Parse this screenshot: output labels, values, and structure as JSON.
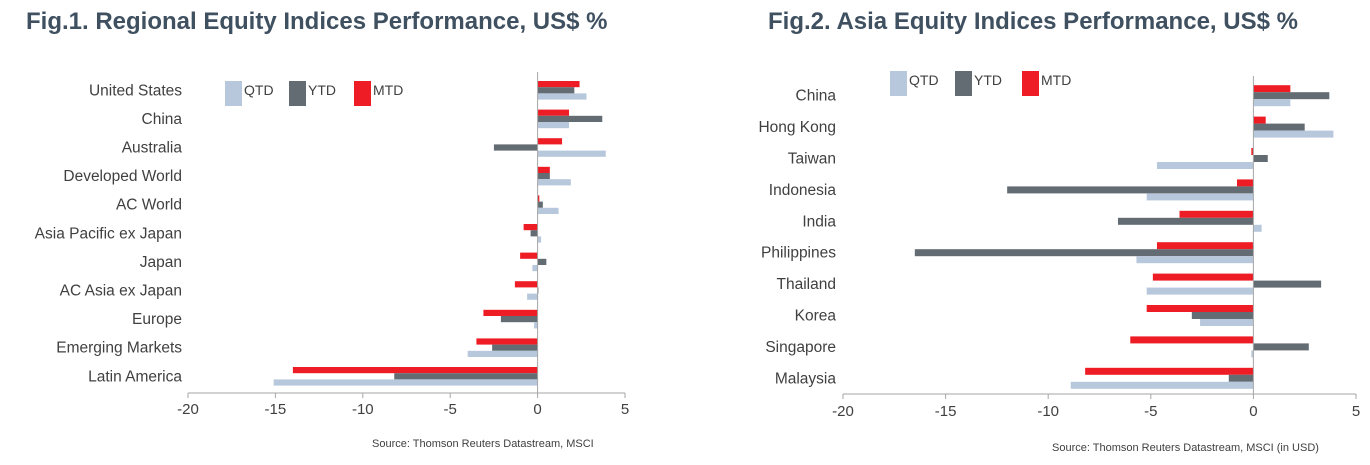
{
  "chart_data": [
    {
      "type": "bar",
      "orientation": "horizontal",
      "title": "Fig.1. Regional Equity Indices Performance, US$ %",
      "categories": [
        "United States",
        "China",
        "Australia",
        "Developed World",
        "AC World",
        "Asia Pacific ex Japan",
        "Japan",
        "AC Asia ex Japan",
        "Europe",
        "Emerging Markets",
        "Latin America"
      ],
      "series": [
        {
          "name": "MTD",
          "color": "#ee1c25",
          "values": [
            2.4,
            1.8,
            1.4,
            0.7,
            0.1,
            -0.8,
            -1.0,
            -1.3,
            -3.1,
            -3.5,
            -14.0
          ]
        },
        {
          "name": "YTD",
          "color": "#636c73",
          "values": [
            2.1,
            3.7,
            -2.5,
            0.7,
            0.3,
            -0.4,
            0.5,
            0.0,
            -2.1,
            -2.6,
            -8.2
          ]
        },
        {
          "name": "QTD",
          "color": "#b8c8dc",
          "values": [
            2.8,
            1.8,
            3.9,
            1.9,
            1.2,
            0.2,
            -0.3,
            -0.6,
            -0.2,
            -4.0,
            -15.1
          ]
        }
      ],
      "legend_order": [
        "QTD",
        "YTD",
        "MTD"
      ],
      "legend_position": "top-left",
      "xlim": [
        -20,
        5
      ],
      "xticks": [
        "-20",
        "-15",
        "-10",
        "-5",
        "0",
        "5"
      ],
      "xlabel": "",
      "ylabel": "",
      "grid": false,
      "source": "Source: Thomson Reuters Datastream, MSCI"
    },
    {
      "type": "bar",
      "orientation": "horizontal",
      "title": "Fig.2. Asia Equity Indices Performance, US$ %",
      "categories": [
        "China",
        "Hong Kong",
        "Taiwan",
        "Indonesia",
        "India",
        "Philippines",
        "Thailand",
        "Korea",
        "Singapore",
        "Malaysia"
      ],
      "series": [
        {
          "name": "MTD",
          "color": "#ee1c25",
          "values": [
            1.8,
            0.6,
            -0.1,
            -0.8,
            -3.6,
            -4.7,
            -4.9,
            -5.2,
            -6.0,
            -8.2
          ]
        },
        {
          "name": "YTD",
          "color": "#636c73",
          "values": [
            3.7,
            2.5,
            0.7,
            -12.0,
            -6.6,
            -16.5,
            3.3,
            -3.0,
            2.7,
            -1.2
          ]
        },
        {
          "name": "QTD",
          "color": "#b8c8dc",
          "values": [
            1.8,
            3.9,
            -4.7,
            -5.2,
            0.4,
            -5.7,
            -5.2,
            -2.6,
            -0.1,
            -8.9
          ]
        }
      ],
      "legend_order": [
        "QTD",
        "YTD",
        "MTD"
      ],
      "legend_position": "top-left",
      "xlim": [
        -20,
        5
      ],
      "xticks": [
        "-20",
        "-15",
        "-10",
        "-5",
        "0",
        "5"
      ],
      "xlabel": "",
      "ylabel": "",
      "grid": false,
      "source": "Source: Thomson Reuters Datastream, MSCI (in USD)"
    }
  ]
}
